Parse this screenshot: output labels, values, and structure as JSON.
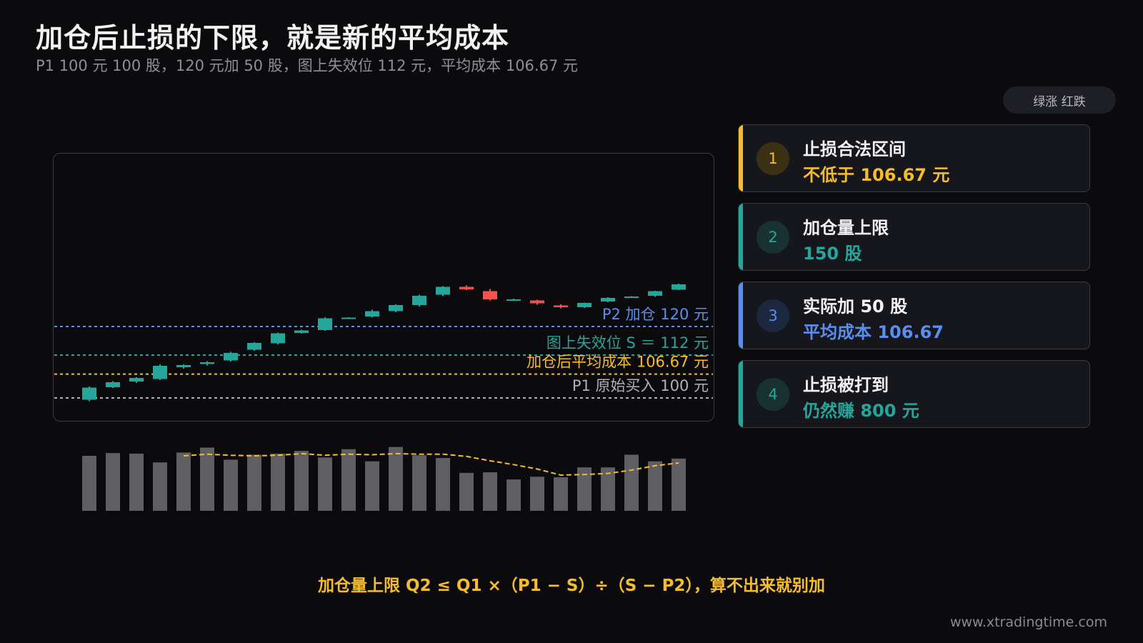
{
  "header": {
    "title": "加仓后止损的下限，就是新的平均成本",
    "subtitle": "P1 100 元 100 股，120 元加 50 股，图上失效位 112 元，平均成本 106.67 元"
  },
  "legend_badge": "绿涨 红跌",
  "colors": {
    "up": "#26a69a",
    "down": "#ef5350",
    "volume": "#5f5f63",
    "p2": "#5b8def",
    "s": "#26a69a",
    "avg": "#f5bd2e",
    "p1": "#b0b0b5"
  },
  "chart_data": {
    "type": "candlestick",
    "y_unit": "元",
    "candles": [
      {
        "o": 99.5,
        "h": 103.2,
        "l": 99.1,
        "c": 102.9
      },
      {
        "o": 103.0,
        "h": 104.7,
        "l": 102.8,
        "c": 104.4
      },
      {
        "o": 104.6,
        "h": 105.8,
        "l": 104.2,
        "c": 105.6
      },
      {
        "o": 105.3,
        "h": 109.4,
        "l": 105.0,
        "c": 109.0
      },
      {
        "o": 108.6,
        "h": 109.4,
        "l": 108.2,
        "c": 109.2
      },
      {
        "o": 109.5,
        "h": 110.3,
        "l": 109.1,
        "c": 110.0
      },
      {
        "o": 110.5,
        "h": 112.9,
        "l": 110.2,
        "c": 112.6
      },
      {
        "o": 113.5,
        "h": 115.6,
        "l": 113.2,
        "c": 115.4
      },
      {
        "o": 115.3,
        "h": 118.3,
        "l": 115.0,
        "c": 118.1
      },
      {
        "o": 118.2,
        "h": 119.1,
        "l": 118.0,
        "c": 118.9
      },
      {
        "o": 119.0,
        "h": 122.6,
        "l": 118.8,
        "c": 122.3
      },
      {
        "o": 122.4,
        "h": 122.6,
        "l": 122.2,
        "c": 122.5
      },
      {
        "o": 122.8,
        "h": 124.7,
        "l": 122.5,
        "c": 124.3
      },
      {
        "o": 124.3,
        "h": 126.2,
        "l": 124.0,
        "c": 126.0
      },
      {
        "o": 126.0,
        "h": 128.9,
        "l": 125.6,
        "c": 128.6
      },
      {
        "o": 128.9,
        "h": 131.3,
        "l": 128.5,
        "c": 131.1
      },
      {
        "o": 131.1,
        "h": 131.5,
        "l": 130.2,
        "c": 130.4
      },
      {
        "o": 129.9,
        "h": 130.5,
        "l": 127.3,
        "c": 127.6
      },
      {
        "o": 127.6,
        "h": 127.8,
        "l": 127.5,
        "c": 127.6
      },
      {
        "o": 127.3,
        "h": 127.5,
        "l": 126.1,
        "c": 126.5
      },
      {
        "o": 125.9,
        "h": 126.2,
        "l": 125.1,
        "c": 125.4
      },
      {
        "o": 125.4,
        "h": 126.7,
        "l": 125.2,
        "c": 126.6
      },
      {
        "o": 127.0,
        "h": 128.2,
        "l": 126.8,
        "c": 128.0
      },
      {
        "o": 128.3,
        "h": 128.5,
        "l": 128.0,
        "c": 128.4
      },
      {
        "o": 128.6,
        "h": 130.0,
        "l": 128.3,
        "c": 129.9
      },
      {
        "o": 130.3,
        "h": 132.0,
        "l": 130.2,
        "c": 131.8
      }
    ],
    "volumes": [
      100,
      105,
      104,
      88,
      106,
      115,
      93,
      102,
      104,
      109,
      97,
      112,
      90,
      116,
      101,
      96,
      69,
      70,
      57,
      62,
      61,
      79,
      79,
      102,
      90,
      95
    ],
    "volume_ma": [
      null,
      null,
      null,
      null,
      100,
      103,
      101,
      100,
      101,
      104,
      101,
      103,
      102,
      104,
      103,
      103,
      99,
      91,
      84,
      76,
      65,
      66,
      68,
      74,
      82,
      87
    ],
    "levels": [
      {
        "key": "p2",
        "value": 120,
        "label": "P2 加仓 120 元"
      },
      {
        "key": "s",
        "value": 112,
        "label": "图上失效位 S ＝ 112 元"
      },
      {
        "key": "avg",
        "value": 106.67,
        "label": "加仓后平均成本 106.67 元"
      },
      {
        "key": "p1",
        "value": 100,
        "label": "P1 原始买入 100 元"
      }
    ]
  },
  "steps": [
    {
      "num": "1",
      "title": "止损合法区间",
      "value": "不低于 106.67 元",
      "accent": "#f5bd2e",
      "num_bg": "#3a3114"
    },
    {
      "num": "2",
      "title": "加仓量上限",
      "value": "150 股",
      "accent": "#26a69a",
      "num_bg": "#173230"
    },
    {
      "num": "3",
      "title": "实际加 50 股",
      "value": "平均成本 106.67",
      "accent": "#5b8def",
      "num_bg": "#1c2740"
    },
    {
      "num": "4",
      "title": "止损被打到",
      "value": "仍然赚 800 元",
      "accent": "#26a69a",
      "num_bg": "#173230"
    }
  ],
  "formula": "加仓量上限 Q2 ≤ Q1 ×（P1 − S）÷（S − P2），算不出来就别加",
  "footer": "www.xtradingtime.com"
}
